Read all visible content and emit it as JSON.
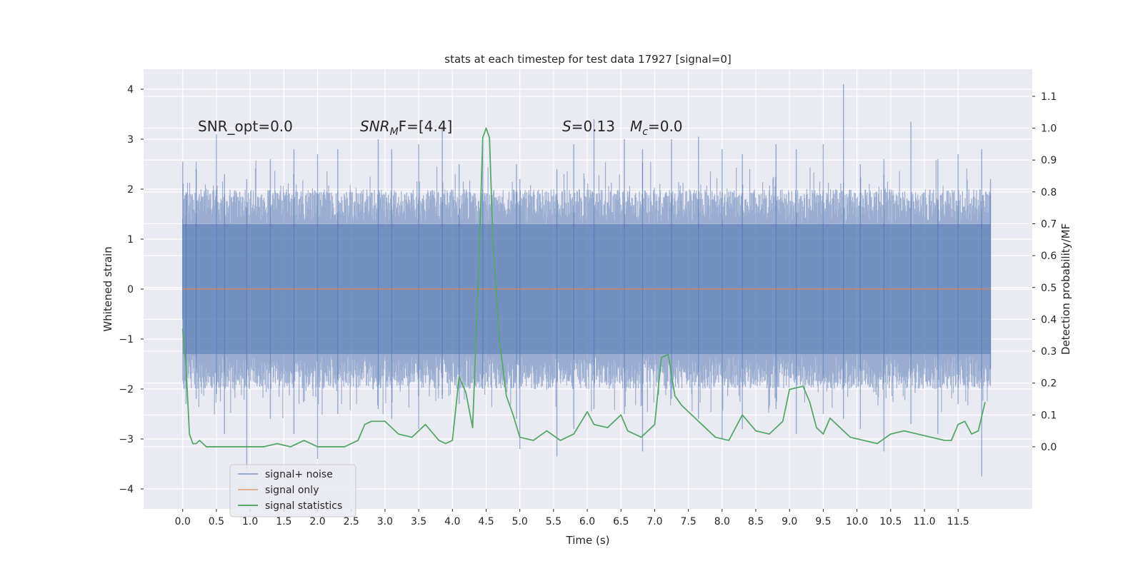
{
  "chart_data": {
    "type": "line",
    "title": "stats at each timestep for test data 17927 [signal=0]",
    "xlabel": "Time (s)",
    "ylabel": "Whitened strain",
    "y2label": "Detection probability/MF",
    "xlim": [
      -0.58,
      12.6
    ],
    "ylim": [
      -4.4,
      4.4
    ],
    "y2lim": [
      -0.195,
      1.185
    ],
    "x_ticks": [
      0.0,
      0.5,
      1.0,
      1.5,
      2.0,
      2.5,
      3.0,
      3.5,
      4.0,
      4.5,
      5.0,
      5.5,
      6.0,
      6.5,
      7.0,
      7.5,
      8.0,
      8.5,
      9.0,
      9.5,
      10.0,
      10.5,
      11.0,
      11.5
    ],
    "x_tick_labels": [
      "0.0",
      "0.5",
      "1.0",
      "1.5",
      "2.0",
      "2.5",
      "3.0",
      "3.5",
      "4.0",
      "4.5",
      "5.0",
      "5.5",
      "6.0",
      "6.5",
      "7.0",
      "7.5",
      "8.0",
      "8.5",
      "9.0",
      "9.5",
      "10.0",
      "10.5",
      "11.0",
      "11.5"
    ],
    "y_ticks": [
      4,
      3,
      2,
      1,
      0,
      -1,
      -2,
      -3,
      -4
    ],
    "y_tick_labels": [
      "4",
      "3",
      "2",
      "1",
      "0",
      "−1",
      "−2",
      "−3",
      "−4"
    ],
    "y2_ticks": [
      1.1,
      1.0,
      0.9,
      0.8,
      0.7,
      0.6,
      0.5,
      0.4,
      0.3,
      0.2,
      0.1,
      0.0
    ],
    "y2_tick_labels": [
      "1.1",
      "1.0",
      "0.9",
      "0.8",
      "0.7",
      "0.6",
      "0.5",
      "0.4",
      "0.3",
      "0.2",
      "0.1",
      "0.0"
    ],
    "grid": true,
    "legend_position": "lower-left",
    "annotations": {
      "snr_opt": "SNR_opt=0.0",
      "snr_mf_main": "SNR",
      "snr_mf_sub": "M",
      "snr_mf_rest": "F=[4.4]",
      "s_var": "S",
      "s_rest": "=0.13",
      "mc_var": "M",
      "mc_sub": "c",
      "mc_rest": "=0.0"
    },
    "series": [
      {
        "name": "signal+ noise",
        "color": "#4c72b0",
        "axis": "left",
        "x_range": [
          0.0,
          11.98
        ],
        "envelope": {
          "core_band": [
            -1.3,
            1.3
          ],
          "typical_max": 2.0,
          "typical_min": -2.0,
          "spikes": [
            [
              0.0,
              2.55,
              -0.6
            ],
            [
              0.05,
              1.9,
              -2.3
            ],
            [
              0.2,
              2.4,
              -2.2
            ],
            [
              0.5,
              3.1,
              -2.1
            ],
            [
              0.62,
              2.3,
              -2.9
            ],
            [
              0.95,
              2.2,
              -3.6
            ],
            [
              1.3,
              2.6,
              -2.6
            ],
            [
              1.65,
              2.8,
              -2.9
            ],
            [
              2.0,
              2.7,
              -3.4
            ],
            [
              2.3,
              2.8,
              -2.5
            ],
            [
              2.9,
              3.0,
              -2.4
            ],
            [
              3.1,
              2.8,
              -2.6
            ],
            [
              3.5,
              2.9,
              -2.8
            ],
            [
              3.85,
              3.25,
              -2.2
            ],
            [
              4.1,
              2.5,
              -2.3
            ],
            [
              4.45,
              2.9,
              -2.0
            ],
            [
              4.95,
              2.5,
              -2.6
            ],
            [
              5.0,
              2.2,
              -3.2
            ],
            [
              5.55,
              2.4,
              -3.35
            ],
            [
              5.8,
              2.9,
              -2.8
            ],
            [
              6.1,
              3.4,
              -2.4
            ],
            [
              6.55,
              3.0,
              -2.5
            ],
            [
              6.82,
              2.8,
              -3.25
            ],
            [
              7.25,
              3.0,
              -2.2
            ],
            [
              7.65,
              3.05,
              -2.6
            ],
            [
              8.0,
              2.8,
              -3.0
            ],
            [
              8.3,
              2.7,
              -2.8
            ],
            [
              8.8,
              2.9,
              -2.4
            ],
            [
              9.1,
              2.8,
              -2.9
            ],
            [
              9.5,
              2.9,
              -2.5
            ],
            [
              9.8,
              4.1,
              -2.6
            ],
            [
              10.05,
              2.5,
              -2.8
            ],
            [
              10.4,
              2.6,
              -3.25
            ],
            [
              10.8,
              3.35,
              -2.7
            ],
            [
              11.2,
              2.6,
              -2.9
            ],
            [
              11.5,
              2.7,
              -2.3
            ],
            [
              11.85,
              2.8,
              -3.75
            ],
            [
              11.98,
              2.2,
              -1.6
            ]
          ]
        }
      },
      {
        "name": "signal only",
        "color": "#dd8452",
        "axis": "left",
        "x": [
          0.0,
          11.98
        ],
        "y": [
          0.0,
          0.0
        ]
      },
      {
        "name": "signal statistics",
        "color": "#55a868",
        "axis": "right",
        "x": [
          0.0,
          0.05,
          0.1,
          0.15,
          0.2,
          0.25,
          0.3,
          0.35,
          0.4,
          0.5,
          0.6,
          0.8,
          1.0,
          1.2,
          1.4,
          1.6,
          1.8,
          1.9,
          2.0,
          2.2,
          2.4,
          2.6,
          2.7,
          2.8,
          2.9,
          3.0,
          3.2,
          3.4,
          3.6,
          3.8,
          3.9,
          4.0,
          4.1,
          4.2,
          4.3,
          4.4,
          4.45,
          4.5,
          4.55,
          4.6,
          4.7,
          4.8,
          4.9,
          5.0,
          5.2,
          5.4,
          5.6,
          5.8,
          6.0,
          6.1,
          6.3,
          6.5,
          6.6,
          6.8,
          7.0,
          7.1,
          7.2,
          7.3,
          7.4,
          7.5,
          7.7,
          7.9,
          8.1,
          8.3,
          8.5,
          8.7,
          8.9,
          9.0,
          9.2,
          9.3,
          9.4,
          9.5,
          9.6,
          9.7,
          9.9,
          10.1,
          10.3,
          10.5,
          10.7,
          10.9,
          11.1,
          11.3,
          11.4,
          11.5,
          11.6,
          11.7,
          11.8,
          11.9
        ],
        "y": [
          0.37,
          0.25,
          0.04,
          0.01,
          0.01,
          0.02,
          0.01,
          0.0,
          0.0,
          0.0,
          0.0,
          0.0,
          0.0,
          0.0,
          0.01,
          0.0,
          0.02,
          0.01,
          0.0,
          0.0,
          0.0,
          0.02,
          0.07,
          0.08,
          0.08,
          0.08,
          0.04,
          0.03,
          0.07,
          0.02,
          0.01,
          0.02,
          0.22,
          0.17,
          0.06,
          0.62,
          0.97,
          1.0,
          0.97,
          0.65,
          0.33,
          0.16,
          0.1,
          0.03,
          0.02,
          0.05,
          0.02,
          0.04,
          0.11,
          0.07,
          0.06,
          0.1,
          0.05,
          0.03,
          0.07,
          0.28,
          0.29,
          0.16,
          0.13,
          0.11,
          0.07,
          0.03,
          0.02,
          0.1,
          0.05,
          0.04,
          0.08,
          0.18,
          0.19,
          0.14,
          0.06,
          0.04,
          0.09,
          0.07,
          0.03,
          0.02,
          0.01,
          0.04,
          0.05,
          0.04,
          0.03,
          0.02,
          0.02,
          0.07,
          0.08,
          0.04,
          0.05,
          0.14
        ]
      }
    ]
  }
}
